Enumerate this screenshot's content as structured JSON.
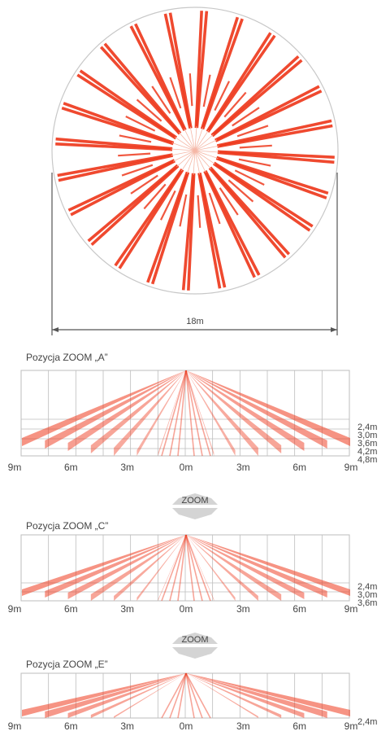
{
  "top_view": {
    "dimension_label": "18m"
  },
  "zoom_label": "ZOOM",
  "sections": [
    {
      "key": "a",
      "title": "Pozycja ZOOM „A”",
      "x_ticks": [
        "9m",
        "6m",
        "3m",
        "0m",
        "3m",
        "6m",
        "9m"
      ],
      "height_labels": [
        "2,4m",
        "3,0m",
        "3,6m",
        "4,2m",
        "4,8m"
      ]
    },
    {
      "key": "c",
      "title": "Pozycja ZOOM „C”",
      "x_ticks": [
        "9m",
        "6m",
        "3m",
        "0m",
        "3m",
        "6m",
        "9m"
      ],
      "height_labels": [
        "2,4m",
        "3,0m",
        "3,6m"
      ]
    },
    {
      "key": "e",
      "title": "Pozycja ZOOM „E”",
      "x_ticks": [
        "9m",
        "6m",
        "3m",
        "0m",
        "3m",
        "6m",
        "9m"
      ],
      "height_labels": [
        "2,4m"
      ]
    }
  ],
  "colors": {
    "beam": "#ee3a1e",
    "beam_light": "#f7a58f",
    "grid": "#bdbdbd",
    "text": "#444444",
    "zoom_arrow": "#cfcfcf"
  }
}
